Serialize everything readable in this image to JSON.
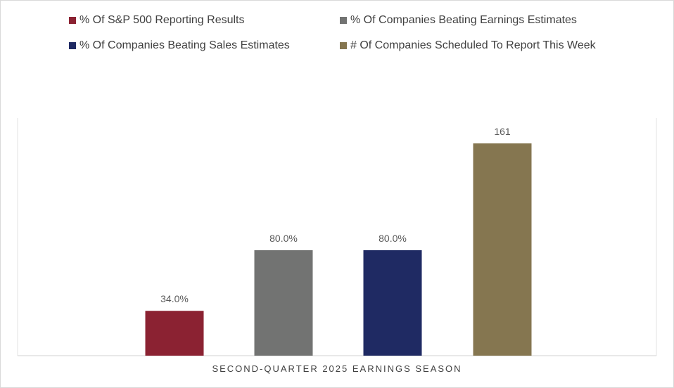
{
  "chart_data": {
    "type": "bar",
    "title": "",
    "xlabel": "SECOND-QUARTER 2025 EARNINGS SEASON",
    "ylabel": "",
    "legend_position": "top",
    "grid": false,
    "series": [
      {
        "name": "% Of S&P 500 Reporting Results",
        "value": 34.0,
        "label": "34.0%",
        "color": "#8b2232"
      },
      {
        "name": "% Of Companies Beating Earnings Estimates",
        "value": 80.0,
        "label": "80.0%",
        "color": "#727372"
      },
      {
        "name": "% Of Companies Beating Sales Estimates",
        "value": 80.0,
        "label": "80.0%",
        "color": "#1f2a63"
      },
      {
        "name": "# Of Companies Scheduled To Report This Week",
        "value": 161,
        "label": "161",
        "color": "#857650"
      }
    ]
  }
}
